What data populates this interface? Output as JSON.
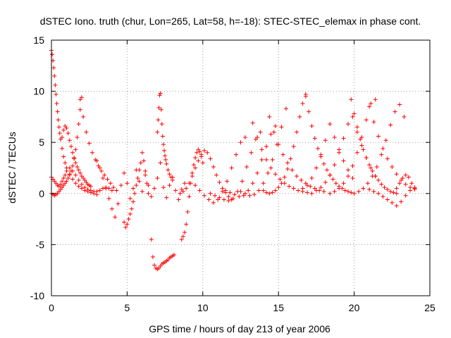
{
  "chart_data": {
    "type": "scatter",
    "title": "dSTEC Iono. truth (chur, Lon=265, Lat=58, h=-18): STEC-STEC_elemax in phase cont.",
    "xlabel": "GPS time / hours of day 213 of year 2006",
    "ylabel": "dSTEC  / TECUs",
    "xlim": [
      0,
      25
    ],
    "ylim": [
      -10,
      15
    ],
    "xticks": [
      0,
      5,
      10,
      15,
      20,
      25
    ],
    "yticks": [
      -10,
      -5,
      0,
      5,
      10,
      15
    ],
    "grid": true,
    "marker": "plus",
    "color": "#ff0000",
    "series": [
      {
        "x": [
          0.0,
          0.05,
          0.1,
          0.15,
          0.2,
          0.25,
          0.3,
          0.35,
          0.4,
          0.45,
          0.5,
          0.55,
          0.6,
          0.7,
          0.8,
          0.9,
          1.0,
          1.2,
          1.4,
          1.6,
          1.8,
          2.0,
          2.2,
          2.4,
          2.6,
          2.8,
          3.0
        ],
        "y": [
          14.0,
          13.6,
          13.0,
          12.3,
          11.5,
          10.6,
          9.7,
          8.8,
          8.0,
          7.2,
          6.5,
          5.9,
          5.3,
          4.4,
          3.6,
          3.0,
          2.5,
          1.9,
          1.4,
          1.0,
          0.7,
          0.5,
          0.3,
          0.2,
          0.1,
          0.0,
          -0.1
        ]
      },
      {
        "x": [
          0.0,
          0.1,
          0.2,
          0.3,
          0.4,
          0.5,
          0.6,
          0.7,
          0.8,
          0.9,
          1.0,
          1.1,
          1.2,
          1.3,
          1.4,
          1.5,
          1.6,
          1.7,
          1.8,
          1.9,
          2.0
        ],
        "y": [
          0.0,
          -0.1,
          -0.2,
          -0.1,
          0.0,
          0.2,
          0.4,
          0.6,
          0.8,
          1.0,
          1.2,
          1.5,
          1.8,
          2.2,
          2.7,
          3.4,
          4.3,
          5.5,
          6.8,
          8.2,
          9.4
        ]
      },
      {
        "x": [
          0.7,
          0.8,
          0.9,
          1.0,
          1.1,
          1.2,
          1.3,
          1.4,
          1.5,
          1.6,
          1.7,
          1.8,
          1.9,
          2.0,
          2.1,
          2.2,
          2.3,
          2.4,
          2.5,
          2.6
        ],
        "y": [
          5.5,
          6.2,
          6.6,
          6.4,
          5.9,
          5.2,
          4.6,
          4.0,
          3.5,
          3.0,
          2.6,
          2.3,
          2.0,
          1.7,
          1.5,
          1.3,
          1.1,
          0.9,
          0.8,
          0.7
        ]
      },
      {
        "x": [
          1.9,
          2.1,
          2.3,
          2.5,
          2.7,
          2.9,
          3.1,
          3.3,
          3.5,
          3.7,
          3.9,
          4.1,
          4.3
        ],
        "y": [
          9.2,
          7.5,
          6.0,
          4.9,
          4.0,
          3.3,
          2.7,
          2.2,
          1.8,
          1.4,
          1.0,
          0.6,
          0.3
        ]
      },
      {
        "x": [
          0.0,
          0.1,
          0.2,
          0.3,
          0.4,
          0.5,
          0.6,
          0.7,
          0.8,
          0.9,
          1.0,
          1.2,
          1.4,
          1.6,
          1.8,
          2.0,
          2.2,
          2.4,
          2.6,
          2.8,
          3.0,
          3.2,
          3.4,
          3.6,
          3.8,
          4.0
        ],
        "y": [
          1.6,
          1.4,
          1.2,
          1.0,
          0.8,
          0.7,
          0.9,
          1.2,
          1.5,
          1.8,
          2.2,
          2.5,
          2.2,
          1.8,
          1.3,
          0.9,
          0.6,
          0.4,
          0.3,
          0.2,
          0.2,
          0.3,
          0.5,
          0.6,
          0.5,
          0.3
        ]
      },
      {
        "x": [
          3.0,
          3.2,
          3.4,
          3.6,
          3.8,
          4.0,
          4.2,
          4.4,
          4.6,
          4.8,
          5.0,
          5.2,
          5.4,
          5.6,
          5.8,
          6.0,
          6.2,
          6.4,
          6.6,
          6.8,
          7.0,
          7.2,
          7.4,
          7.6,
          7.8,
          8.0,
          8.2,
          8.4,
          8.6,
          8.8
        ],
        "y": [
          3.2,
          2.5,
          1.5,
          0.5,
          -0.5,
          -1.5,
          -2.3,
          -1.0,
          0.8,
          2.0,
          1.0,
          -0.5,
          0.5,
          2.3,
          1.2,
          0.2,
          1.8,
          0.8,
          -0.3,
          0.5,
          1.5,
          3.0,
          0.6,
          -0.4,
          0.8,
          1.6,
          0.3,
          -0.6,
          0.4,
          1.0
        ]
      },
      {
        "x": [
          4.8,
          4.9,
          5.0,
          5.1,
          5.2,
          5.3,
          5.4,
          5.5,
          5.6,
          5.7,
          5.8,
          5.9,
          6.0,
          6.1,
          6.2,
          6.3,
          6.4
        ],
        "y": [
          -2.8,
          -3.3,
          -3.0,
          -2.5,
          -2.0,
          -1.5,
          -0.8,
          0.0,
          0.8,
          1.5,
          2.3,
          3.0,
          4.0,
          3.2,
          2.2,
          1.0,
          0.0
        ]
      },
      {
        "x": [
          6.6,
          6.7,
          6.8,
          6.9,
          7.0,
          7.1,
          7.2,
          7.3,
          7.4,
          7.5,
          7.6,
          7.7,
          7.8,
          7.9,
          8.0,
          8.1
        ],
        "y": [
          -4.5,
          -6.2,
          -7.0,
          -7.3,
          -7.4,
          -7.3,
          -7.1,
          -6.9,
          -6.8,
          -6.7,
          -6.6,
          -6.5,
          -6.3,
          -6.2,
          -6.1,
          -6.0
        ]
      },
      {
        "x": [
          7.0,
          7.05,
          7.1,
          7.15,
          7.2,
          7.25,
          7.3,
          7.35,
          7.4,
          7.45,
          7.5,
          7.55,
          7.6,
          7.7,
          7.8,
          7.9,
          8.0
        ],
        "y": [
          6.0,
          7.2,
          8.4,
          9.6,
          9.8,
          8.2,
          6.8,
          5.6,
          4.8,
          4.2,
          3.7,
          3.3,
          2.9,
          2.3,
          1.9,
          1.6,
          1.3
        ]
      },
      {
        "x": [
          8.6,
          8.7,
          8.8,
          8.9,
          9.0,
          9.1,
          9.2,
          9.3,
          9.4,
          9.5,
          9.6,
          9.7,
          9.8,
          9.9,
          10.0
        ],
        "y": [
          -4.5,
          -4.2,
          -3.8,
          -3.0,
          -1.8,
          -0.3,
          1.0,
          2.0,
          2.8,
          3.5,
          4.0,
          4.3,
          4.1,
          3.6,
          3.0
        ]
      },
      {
        "x": [
          8.5,
          8.7,
          8.9,
          9.1,
          9.3,
          9.5,
          9.7,
          9.9,
          10.1,
          10.3,
          10.5,
          10.7,
          10.9,
          11.1,
          11.3,
          11.5,
          11.7,
          11.9
        ],
        "y": [
          0.0,
          0.2,
          0.5,
          1.0,
          1.7,
          2.5,
          3.2,
          3.8,
          4.2,
          4.0,
          3.4,
          2.6,
          1.8,
          1.1,
          0.5,
          0.1,
          -0.3,
          -0.6
        ]
      },
      {
        "x": [
          9.5,
          9.8,
          10.1,
          10.4,
          10.7,
          11.0,
          11.3,
          11.6,
          11.9,
          12.2,
          12.5,
          12.8
        ],
        "y": [
          0.8,
          0.3,
          -0.2,
          -0.6,
          -0.9,
          -0.6,
          0.2,
          1.2,
          2.5,
          3.8,
          5.0,
          5.5
        ]
      },
      {
        "x": [
          10.5,
          10.8,
          11.1,
          11.4,
          11.7,
          12.0,
          12.3,
          12.6,
          12.9,
          13.2,
          13.5,
          13.8
        ],
        "y": [
          0.0,
          -0.2,
          -0.4,
          -0.6,
          -0.7,
          -0.5,
          0.2,
          1.2,
          2.6,
          4.0,
          5.3,
          6.0
        ]
      },
      {
        "x": [
          11.5,
          11.8,
          12.1,
          12.4,
          12.7,
          13.0,
          13.3,
          13.6,
          13.9,
          14.2,
          14.5,
          14.8
        ],
        "y": [
          0.3,
          0.1,
          -0.1,
          -0.3,
          -0.2,
          0.3,
          1.0,
          2.0,
          3.3,
          4.6,
          5.8,
          6.6
        ]
      },
      {
        "x": [
          12.5,
          12.8,
          13.1,
          13.4,
          13.7,
          14.0,
          14.3,
          14.6,
          14.9,
          15.2,
          15.5
        ],
        "y": [
          0.2,
          0.0,
          -0.2,
          -0.1,
          0.3,
          1.0,
          2.0,
          3.3,
          4.8,
          6.5,
          8.3
        ]
      },
      {
        "x": [
          14.0,
          14.2,
          14.4,
          14.6,
          14.8,
          15.0,
          15.2,
          15.4,
          15.6,
          15.8,
          16.0,
          16.2,
          16.4,
          16.6,
          16.8
        ],
        "y": [
          0.3,
          0.1,
          0.0,
          0.1,
          0.3,
          0.6,
          1.0,
          1.6,
          2.4,
          3.4,
          4.6,
          6.0,
          7.5,
          8.8,
          9.7
        ]
      },
      {
        "x": [
          13.3,
          13.6,
          13.9,
          14.2,
          14.5,
          14.8,
          15.1,
          15.4,
          15.7,
          16.0,
          16.3,
          16.6,
          16.9,
          17.2
        ],
        "y": [
          6.9,
          5.5,
          4.3,
          3.3,
          2.5,
          1.9,
          1.4,
          1.0,
          0.7,
          0.5,
          0.3,
          0.2,
          0.1,
          0.0
        ]
      },
      {
        "x": [
          14.4,
          14.7,
          15.0,
          15.3,
          15.6,
          15.9,
          16.2,
          16.5,
          16.8,
          17.1,
          17.4,
          17.7,
          18.0
        ],
        "y": [
          7.5,
          6.0,
          4.8,
          3.8,
          3.0,
          2.3,
          1.7,
          1.3,
          1.0,
          0.7,
          0.5,
          0.3,
          0.2
        ]
      },
      {
        "x": [
          16.8,
          17.0,
          17.2,
          17.4,
          17.6,
          17.8,
          18.0,
          18.2,
          18.4,
          18.6,
          18.8,
          19.0,
          19.2,
          19.4,
          19.6,
          19.8
        ],
        "y": [
          9.5,
          8.0,
          6.6,
          5.4,
          4.4,
          3.6,
          2.9,
          2.3,
          1.8,
          1.4,
          1.0,
          0.7,
          0.5,
          0.3,
          0.2,
          0.1
        ]
      },
      {
        "x": [
          16.6,
          16.9,
          17.2,
          17.5,
          17.8,
          18.1,
          18.4,
          18.7,
          19.0,
          19.3,
          19.6,
          19.9
        ],
        "y": [
          0.5,
          0.8,
          1.5,
          2.5,
          3.8,
          5.2,
          6.8,
          5.5,
          4.3,
          3.2,
          2.3,
          1.5
        ]
      },
      {
        "x": [
          17.5,
          17.8,
          18.1,
          18.4,
          18.7,
          19.0,
          19.3,
          19.6,
          19.9,
          20.2,
          20.5,
          20.8,
          21.1,
          21.4
        ],
        "y": [
          0.3,
          0.6,
          1.1,
          1.8,
          2.8,
          4.0,
          5.4,
          6.8,
          7.5,
          6.0,
          4.7,
          3.5,
          2.5,
          1.7
        ]
      },
      {
        "x": [
          18.4,
          18.7,
          19.0,
          19.3,
          19.6,
          19.9,
          20.2,
          20.5,
          20.8,
          21.1,
          21.4
        ],
        "y": [
          0.0,
          0.2,
          0.5,
          1.0,
          1.7,
          2.7,
          4.0,
          5.5,
          7.2,
          8.8,
          9.2
        ]
      },
      {
        "x": [
          19.8,
          20.0,
          20.2,
          20.4,
          20.6,
          20.8,
          21.0,
          21.2,
          21.4,
          21.6,
          21.8,
          22.0,
          22.2,
          22.4,
          22.6,
          22.8
        ],
        "y": [
          9.2,
          7.8,
          6.5,
          5.3,
          4.3,
          3.5,
          2.8,
          2.2,
          1.7,
          1.3,
          0.9,
          0.6,
          0.4,
          0.2,
          0.1,
          0.0
        ]
      },
      {
        "x": [
          20.0,
          20.3,
          20.6,
          20.9,
          21.2,
          21.5,
          21.8,
          22.1,
          22.4,
          22.7,
          23.0,
          23.3
        ],
        "y": [
          0.0,
          0.2,
          0.5,
          1.0,
          1.7,
          2.6,
          3.8,
          5.2,
          6.7,
          8.0,
          8.7,
          7.5
        ]
      },
      {
        "x": [
          21.0,
          21.3,
          21.6,
          21.9,
          22.2,
          22.5,
          22.8,
          23.1,
          23.4,
          23.7,
          24.0
        ],
        "y": [
          8.5,
          7.0,
          5.6,
          4.4,
          3.4,
          2.6,
          1.9,
          1.3,
          0.9,
          0.6,
          0.5
        ]
      },
      {
        "x": [
          21.0,
          21.3,
          21.6,
          21.9,
          22.2,
          22.5,
          22.8,
          23.1,
          23.4,
          23.7,
          24.0
        ],
        "y": [
          0.4,
          0.2,
          0.0,
          -0.3,
          -0.6,
          -0.9,
          -1.2,
          -0.8,
          -0.2,
          0.3,
          0.6
        ]
      },
      {
        "x": [
          22.8,
          23.0,
          23.2,
          23.4,
          23.6,
          23.8,
          24.0
        ],
        "y": [
          0.5,
          1.0,
          1.5,
          1.8,
          1.6,
          1.0,
          0.4
        ]
      }
    ]
  }
}
